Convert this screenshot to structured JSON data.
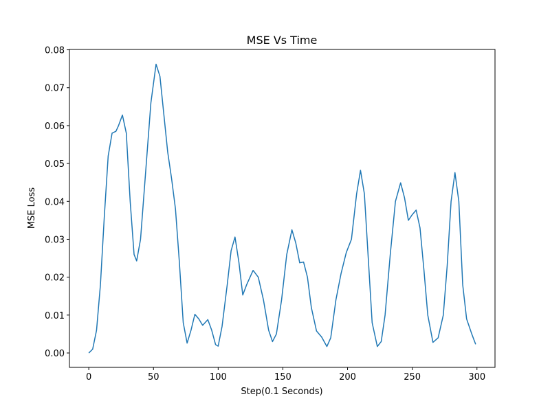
{
  "chart_data": {
    "type": "line",
    "title": "MSE Vs Time",
    "x_label": "Step(0.1 Seconds)",
    "y_label": "MSE Loss",
    "x": [
      0,
      3,
      6,
      9,
      12,
      15,
      18,
      21,
      23,
      26,
      29,
      32,
      35,
      37,
      40,
      44,
      48,
      52,
      55,
      58,
      61,
      64,
      67,
      70,
      73,
      76,
      79,
      82,
      85,
      88,
      92,
      95,
      98,
      100,
      103,
      107,
      110,
      113,
      116,
      119,
      122,
      127,
      131,
      135,
      139,
      142,
      145,
      149,
      153,
      157,
      160,
      163,
      166,
      169,
      172,
      176,
      180,
      184,
      187,
      191,
      195,
      199,
      203,
      207,
      210,
      213,
      216,
      219,
      223,
      226,
      229,
      233,
      237,
      241,
      244,
      247,
      250,
      253,
      256,
      259,
      262,
      266,
      270,
      274,
      277,
      280,
      283,
      286,
      289,
      292,
      296,
      299
    ],
    "series": [
      {
        "color": "#1f77b4",
        "values": [
          0.0,
          0.001,
          0.006,
          0.018,
          0.036,
          0.052,
          0.058,
          0.0585,
          0.06,
          0.0628,
          0.058,
          0.04,
          0.026,
          0.0243,
          0.03,
          0.048,
          0.066,
          0.0762,
          0.073,
          0.063,
          0.053,
          0.046,
          0.038,
          0.024,
          0.008,
          0.0026,
          0.006,
          0.0102,
          0.009,
          0.0073,
          0.0088,
          0.006,
          0.0022,
          0.0018,
          0.007,
          0.018,
          0.027,
          0.0306,
          0.024,
          0.0153,
          0.018,
          0.0218,
          0.02,
          0.014,
          0.006,
          0.003,
          0.005,
          0.014,
          0.026,
          0.0325,
          0.029,
          0.0238,
          0.024,
          0.02,
          0.012,
          0.0058,
          0.0042,
          0.0017,
          0.004,
          0.014,
          0.021,
          0.0265,
          0.03,
          0.042,
          0.0482,
          0.042,
          0.025,
          0.008,
          0.0017,
          0.003,
          0.01,
          0.026,
          0.04,
          0.0449,
          0.041,
          0.035,
          0.0365,
          0.0377,
          0.033,
          0.022,
          0.01,
          0.0028,
          0.004,
          0.01,
          0.023,
          0.04,
          0.0476,
          0.04,
          0.018,
          0.009,
          0.005,
          0.0023
        ]
      }
    ],
    "xlim": [
      -14.95,
      313.95
    ],
    "xticks": [
      0,
      50,
      100,
      150,
      200,
      250,
      300
    ],
    "ylim": [
      -0.0038,
      0.0801
    ],
    "yticks": [
      {
        "value": 0,
        "label": "0.00"
      },
      0.01,
      0.02,
      0.03,
      0.04,
      0.05,
      0.06,
      0.07,
      0.08
    ]
  }
}
